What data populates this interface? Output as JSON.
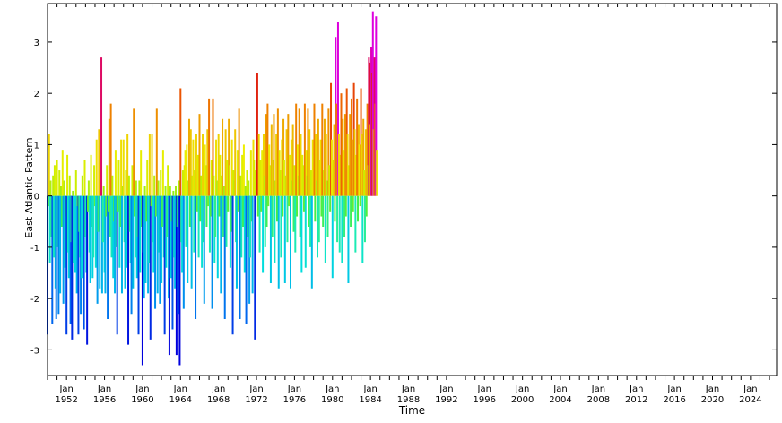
{
  "chart_data": {
    "type": "bar",
    "xlabel": "Time",
    "ylabel": "East Atlantic Pattern",
    "ylim": [
      -3.5,
      3.75
    ],
    "xlim": [
      1950.0,
      2026.75
    ],
    "grid": false,
    "legend": "none",
    "y_ticks": [
      -3,
      -2,
      -1,
      0,
      1,
      2,
      3
    ],
    "x_tick_labels": [
      {
        "year": 1952,
        "label": "Jan",
        "year_label": "1952"
      },
      {
        "year": 1956,
        "label": "Jan",
        "year_label": "1956"
      },
      {
        "year": 1960,
        "label": "Jan",
        "year_label": "1960"
      },
      {
        "year": 1964,
        "label": "Jan",
        "year_label": "1964"
      },
      {
        "year": 1968,
        "label": "Jan",
        "year_label": "1968"
      },
      {
        "year": 1972,
        "label": "Jan",
        "year_label": "1972"
      },
      {
        "year": 1976,
        "label": "Jan",
        "year_label": "1976"
      },
      {
        "year": 1980,
        "label": "Jan",
        "year_label": "1980"
      },
      {
        "year": 1984,
        "label": "Jan",
        "year_label": "1984"
      },
      {
        "year": 1988,
        "label": "Jan",
        "year_label": "1988"
      },
      {
        "year": 1992,
        "label": "Jan",
        "year_label": "1992"
      },
      {
        "year": 1996,
        "label": "Jan",
        "year_label": "1996"
      },
      {
        "year": 2000,
        "label": "Jan",
        "year_label": "2000"
      },
      {
        "year": 2004,
        "label": "Jan",
        "year_label": "2004"
      },
      {
        "year": 2008,
        "label": "Jan",
        "year_label": "2008"
      },
      {
        "year": 2012,
        "label": "Jan",
        "year_label": "2012"
      },
      {
        "year": 2016,
        "label": "Jan",
        "year_label": "2016"
      },
      {
        "year": 2020,
        "label": "Jan",
        "year_label": "2020"
      },
      {
        "year": 2024,
        "label": "Jan",
        "year_label": "2024"
      }
    ],
    "color_scale": {
      "stops": [
        {
          "value": -3.0,
          "color": "#0000dd"
        },
        {
          "value": -2.5,
          "color": "#0066ee"
        },
        {
          "value": -2.0,
          "color": "#00aaee"
        },
        {
          "value": -1.5,
          "color": "#00dddd"
        },
        {
          "value": -1.0,
          "color": "#22eeaa"
        },
        {
          "value": -0.5,
          "color": "#44ee44"
        },
        {
          "value": 0.0,
          "color": "#88ee22"
        },
        {
          "value": 0.5,
          "color": "#ccee00"
        },
        {
          "value": 1.0,
          "color": "#eeee00"
        },
        {
          "value": 1.5,
          "color": "#eeaa00"
        },
        {
          "value": 2.0,
          "color": "#ee6600"
        },
        {
          "value": 2.5,
          "color": "#dd1111"
        },
        {
          "value": 3.0,
          "color": "#dd00dd"
        }
      ]
    },
    "series": [
      {
        "start_year": 1950,
        "start_month": 1,
        "values": [
          -2.7,
          -0.2,
          1.2,
          -1.3,
          0.3,
          -0.8,
          -2.5,
          0.4,
          -1.2,
          0.6,
          -1.8,
          -2.4,
          0.7,
          -1.0,
          -2.3,
          0.5,
          -1.9,
          0.2,
          -0.6,
          0.9,
          -2.1,
          0.3,
          -1.4,
          -0.4,
          -2.7,
          0.8,
          -1.1,
          -1.6,
          0.4,
          -2.5,
          -0.9,
          -2.8,
          0.1,
          -1.3,
          -0.5,
          -1.5,
          0.5,
          -1.9,
          -0.2,
          -2.7,
          -0.7,
          -1.2,
          -2.3,
          -1.6,
          0.4,
          -1.4,
          -2.6,
          0.7,
          -0.8,
          -1.5,
          -2.9,
          -0.3,
          0.3,
          -1.1,
          -1.7,
          0.8,
          -0.6,
          -1.6,
          -1.2,
          0.6,
          -0.2,
          -1.4,
          1.1,
          -2.1,
          -0.7,
          1.3,
          -1.8,
          0.5,
          2.7,
          -1.9,
          -0.9,
          0.2,
          -1.5,
          -1.9,
          -0.4,
          0.6,
          -2.4,
          -0.3,
          1.5,
          -0.8,
          1.8,
          -1.2,
          0.4,
          -1.6,
          -0.5,
          -1.9,
          0.9,
          -1.0,
          -2.7,
          -0.3,
          0.7,
          -1.4,
          -0.6,
          1.1,
          -1.9,
          0.2,
          1.1,
          -0.9,
          -1.8,
          0.5,
          -1.4,
          1.2,
          -2.9,
          0.4,
          -0.7,
          -1.3,
          -2.3,
          0.6,
          -1.8,
          1.7,
          -0.4,
          -1.2,
          0.3,
          -1.6,
          -0.8,
          -2.7,
          0.3,
          -1.5,
          0.9,
          -0.6,
          -3.3,
          -1.1,
          -2.0,
          0.2,
          -1.7,
          -0.5,
          0.7,
          -1.9,
          -1.3,
          1.2,
          -2.8,
          -0.2,
          1.2,
          -0.9,
          -1.5,
          0.4,
          -2.2,
          -0.4,
          1.7,
          -1.9,
          0.3,
          -1.1,
          -2.1,
          0.5,
          -1.7,
          -0.6,
          0.9,
          -1.2,
          -2.7,
          0.2,
          -1.4,
          -0.8,
          0.6,
          -2.0,
          -3.1,
          0.2,
          -1.6,
          -0.5,
          -2.6,
          0.1,
          -1.2,
          -1.8,
          0.2,
          -3.1,
          -0.6,
          -2.3,
          0.3,
          -3.3,
          2.1,
          -0.9,
          -1.5,
          0.5,
          -2.2,
          0.6,
          0.9,
          -1.0,
          1.0,
          -1.7,
          0.3,
          1.5,
          -0.6,
          1.3,
          -1.8,
          0.4,
          1.1,
          -1.1,
          0.5,
          -2.4,
          1.2,
          -0.3,
          0.8,
          -1.2,
          1.6,
          -0.5,
          0.4,
          -1.4,
          1.2,
          -0.9,
          -2.1,
          1.0,
          0.6,
          -0.6,
          1.3,
          -0.2,
          1.9,
          -1.1,
          -0.4,
          0.7,
          -2.2,
          1.9,
          0.4,
          -1.3,
          -0.8,
          1.1,
          0.3,
          -1.6,
          1.2,
          -0.4,
          0.8,
          -1.9,
          0.4,
          1.5,
          -0.8,
          0.2,
          -2.4,
          1.3,
          -1.0,
          0.7,
          -0.3,
          1.5,
          0.6,
          -1.4,
          -0.7,
          1.1,
          -2.7,
          0.5,
          0.3,
          1.3,
          -0.9,
          -1.8,
          0.9,
          -0.3,
          1.7,
          -2.4,
          0.4,
          -1.2,
          0.8,
          -0.6,
          1.0,
          -1.5,
          0.2,
          -2.5,
          0.5,
          -0.8,
          0.3,
          -2.1,
          -1.2,
          0.9,
          -0.5,
          -1.9,
          1.1,
          0.7,
          -2.8,
          0.5,
          1.7,
          2.4,
          -0.4,
          1.2,
          -1.1,
          0.7,
          -0.3,
          0.9,
          -1.5,
          1.2,
          0.4,
          -1.0,
          1.6,
          -0.6,
          1.8,
          -0.2,
          1.0,
          0.6,
          -1.7,
          1.4,
          -0.8,
          0.7,
          1.6,
          -1.3,
          0.3,
          1.2,
          -0.5,
          1.7,
          -1.8,
          0.9,
          0.5,
          -1.2,
          1.1,
          -0.4,
          1.5,
          0.7,
          -1.7,
          0.4,
          1.3,
          -0.9,
          1.6,
          -0.2,
          0.8,
          -1.8,
          1.1,
          0.3,
          1.4,
          -0.7,
          0.6,
          -1.1,
          1.8,
          -0.4,
          1.0,
          0.4,
          1.7,
          -0.8,
          1.2,
          -1.5,
          0.8,
          0.6,
          -0.3,
          1.8,
          -1.4,
          0.9,
          0.4,
          1.7,
          -0.6,
          1.3,
          -1.0,
          0.5,
          -1.8,
          1.1,
          0.8,
          1.8,
          -0.5,
          1.2,
          0.3,
          -1.2,
          1.5,
          -0.9,
          0.7,
          1.1,
          -0.4,
          1.8,
          -0.6,
          0.5,
          1.5,
          -1.3,
          1.2,
          0.3,
          -0.8,
          1.7,
          0.6,
          -0.3,
          2.2,
          1.1,
          -1.6,
          0.7,
          1.4,
          -0.5,
          3.1,
          1.8,
          -0.9,
          3.4,
          1.2,
          -1.1,
          0.8,
          2.0,
          -1.3,
          1.5,
          0.9,
          -0.8,
          1.6,
          -0.4,
          2.1,
          1.2,
          -1.7,
          0.6,
          1.6,
          -0.6,
          1.9,
          1.1,
          -0.3,
          2.2,
          1.3,
          -1.1,
          0.8,
          1.9,
          -0.5,
          1.4,
          1.0,
          -0.2,
          2.1,
          1.2,
          -1.3,
          1.5,
          0.5,
          -0.9,
          1.3,
          -0.4,
          1.8,
          0.6,
          2.7,
          2.6,
          1.4,
          2.9,
          2.4,
          3.6,
          1.3,
          2.7,
          1.8,
          3.5,
          0.9
        ]
      }
    ]
  }
}
